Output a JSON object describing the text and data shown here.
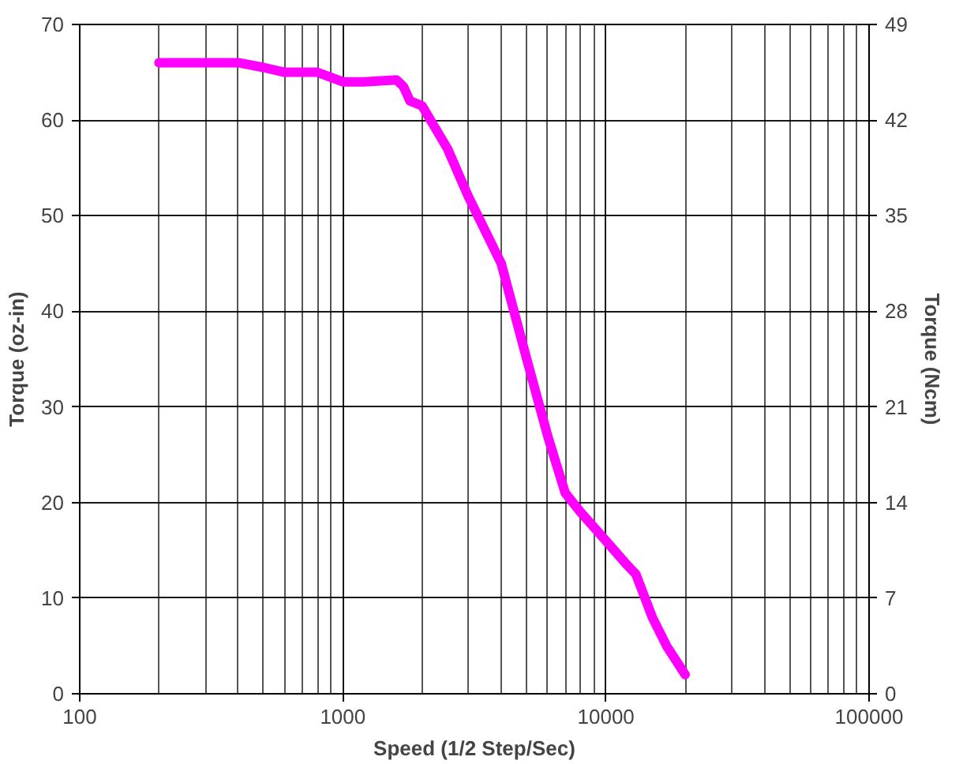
{
  "chart_data": {
    "type": "line",
    "xlabel": "Speed (1/2 Step/Sec)",
    "ylabel": "Torque (oz-in)",
    "y2label": "Torque (Ncm)",
    "log": "x",
    "x": [
      200,
      300,
      400,
      500,
      600,
      800,
      1000,
      1200,
      1600,
      1700,
      1800,
      2000,
      2500,
      3000,
      4000,
      5000,
      6000,
      7000,
      8000,
      10000,
      12000,
      13000,
      15000,
      17000,
      20000
    ],
    "series": [
      {
        "color": "#ff00ff",
        "values": [
          66,
          66,
          66,
          65.5,
          65,
          65,
          64,
          64,
          64.2,
          63.5,
          62,
          61.5,
          57,
          52,
          45,
          35,
          27,
          21,
          19,
          16,
          13.5,
          12.5,
          8,
          5,
          2
        ]
      }
    ],
    "xlim": [
      100,
      100000
    ],
    "xticks": [
      100,
      1000,
      10000,
      100000
    ],
    "ylim": [
      0,
      70
    ],
    "yticks": [
      0,
      10,
      20,
      30,
      40,
      50,
      60,
      70
    ],
    "y2lim": [
      0,
      49
    ],
    "y2ticks": [
      0,
      7,
      14,
      21,
      28,
      35,
      42,
      49
    ],
    "grid": true,
    "marker": "none",
    "line_style": "solid"
  }
}
